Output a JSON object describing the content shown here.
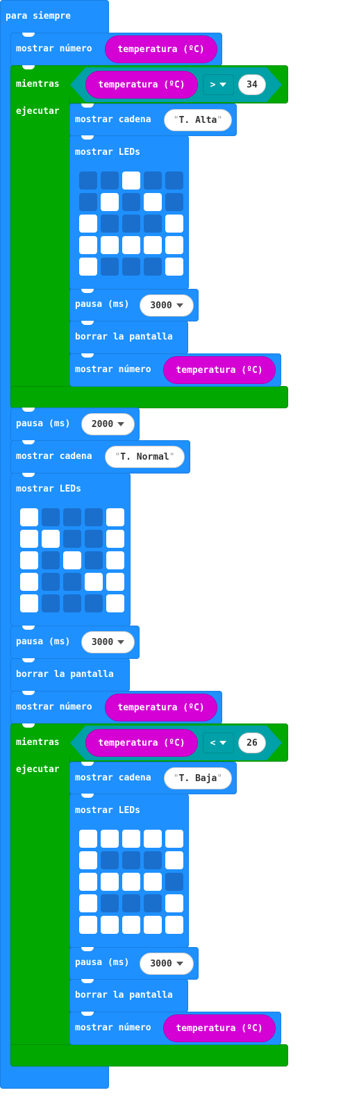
{
  "forever": {
    "label": "para siempre"
  },
  "blocks": {
    "show_number": "mostrar número",
    "show_string": "mostrar cadena",
    "show_leds": "mostrar LEDs",
    "pause": "pausa (ms)",
    "clear": "borrar la pantalla",
    "while": "mientras",
    "do": "ejecutar"
  },
  "variable": "temperatura (ºC)",
  "loop1": {
    "op": ">",
    "value": "34",
    "string": "T. Alta",
    "pause": "3000",
    "leds": [
      [
        0,
        0,
        1,
        0,
        0
      ],
      [
        0,
        1,
        0,
        1,
        0
      ],
      [
        1,
        0,
        0,
        0,
        1
      ],
      [
        1,
        1,
        1,
        1,
        1
      ],
      [
        1,
        0,
        0,
        0,
        1
      ]
    ]
  },
  "mid": {
    "pause1": "2000",
    "string": "T. Normal",
    "pause2": "3000",
    "leds": [
      [
        1,
        0,
        0,
        0,
        1
      ],
      [
        1,
        1,
        0,
        0,
        1
      ],
      [
        1,
        0,
        1,
        0,
        1
      ],
      [
        1,
        0,
        0,
        1,
        1
      ],
      [
        1,
        0,
        0,
        0,
        1
      ]
    ]
  },
  "loop2": {
    "op": "<",
    "value": "26",
    "string": "T. Baja",
    "pause": "3000",
    "leds": [
      [
        1,
        1,
        1,
        1,
        1
      ],
      [
        1,
        0,
        0,
        0,
        1
      ],
      [
        1,
        1,
        1,
        1,
        0
      ],
      [
        1,
        0,
        0,
        0,
        1
      ],
      [
        1,
        1,
        1,
        1,
        1
      ]
    ]
  },
  "colors": {
    "basic": "#1e90ff",
    "loop": "#00a800",
    "variable": "#d400d4",
    "logic": "#00a0a8"
  }
}
